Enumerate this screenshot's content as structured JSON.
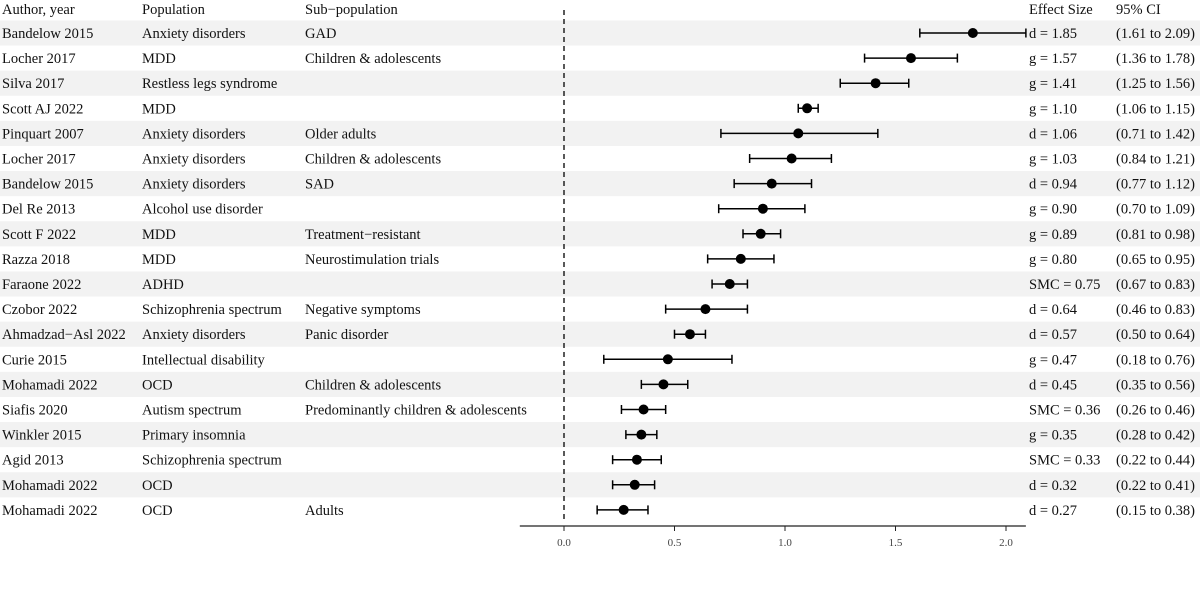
{
  "chart_data": {
    "type": "forest",
    "columns": {
      "author": "Author, year",
      "population": "Population",
      "subpopulation": "Sub−population",
      "effect": "Effect Size",
      "ci": "95% CI"
    },
    "x_ticks": [
      "0.0",
      "0.5",
      "1.0",
      "1.5",
      "2.0"
    ],
    "x_tick_values": [
      0,
      0.5,
      1.0,
      1.5,
      2.0
    ],
    "xlim": [
      -0.2,
      2.09
    ],
    "reference_line": 0,
    "series_color": "#000000",
    "stripe_color": "#f2f2f2",
    "rows": [
      {
        "author": "Bandelow 2015",
        "population": "Anxiety disorders",
        "subpopulation": "GAD",
        "effect_label": "d = 1.85",
        "ci_label": "(1.61 to 2.09)",
        "est": 1.85,
        "lo": 1.61,
        "hi": 2.09
      },
      {
        "author": "Locher 2017",
        "population": "MDD",
        "subpopulation": "Children & adolescents",
        "effect_label": "g = 1.57",
        "ci_label": "(1.36 to 1.78)",
        "est": 1.57,
        "lo": 1.36,
        "hi": 1.78
      },
      {
        "author": "Silva 2017",
        "population": "Restless legs syndrome",
        "subpopulation": "",
        "effect_label": "g = 1.41",
        "ci_label": "(1.25 to 1.56)",
        "est": 1.41,
        "lo": 1.25,
        "hi": 1.56
      },
      {
        "author": "Scott AJ 2022",
        "population": "MDD",
        "subpopulation": "",
        "effect_label": "g = 1.10",
        "ci_label": "(1.06 to 1.15)",
        "est": 1.1,
        "lo": 1.06,
        "hi": 1.15
      },
      {
        "author": "Pinquart 2007",
        "population": "Anxiety disorders",
        "subpopulation": "Older adults",
        "effect_label": "d = 1.06",
        "ci_label": "(0.71 to 1.42)",
        "est": 1.06,
        "lo": 0.71,
        "hi": 1.42
      },
      {
        "author": "Locher 2017",
        "population": "Anxiety disorders",
        "subpopulation": "Children & adolescents",
        "effect_label": "g = 1.03",
        "ci_label": "(0.84 to 1.21)",
        "est": 1.03,
        "lo": 0.84,
        "hi": 1.21
      },
      {
        "author": "Bandelow 2015",
        "population": "Anxiety disorders",
        "subpopulation": "SAD",
        "effect_label": "d = 0.94",
        "ci_label": "(0.77 to 1.12)",
        "est": 0.94,
        "lo": 0.77,
        "hi": 1.12
      },
      {
        "author": "Del Re 2013",
        "population": "Alcohol use disorder",
        "subpopulation": "",
        "effect_label": "g = 0.90",
        "ci_label": "(0.70 to 1.09)",
        "est": 0.9,
        "lo": 0.7,
        "hi": 1.09
      },
      {
        "author": "Scott F 2022",
        "population": "MDD",
        "subpopulation": "Treatment−resistant",
        "effect_label": "g = 0.89",
        "ci_label": "(0.81 to 0.98)",
        "est": 0.89,
        "lo": 0.81,
        "hi": 0.98
      },
      {
        "author": "Razza 2018",
        "population": "MDD",
        "subpopulation": "Neurostimulation trials",
        "effect_label": "g = 0.80",
        "ci_label": "(0.65 to 0.95)",
        "est": 0.8,
        "lo": 0.65,
        "hi": 0.95
      },
      {
        "author": "Faraone 2022",
        "population": "ADHD",
        "subpopulation": "",
        "effect_label": "SMC = 0.75",
        "ci_label": "(0.67 to 0.83)",
        "est": 0.75,
        "lo": 0.67,
        "hi": 0.83
      },
      {
        "author": "Czobor 2022",
        "population": "Schizophrenia spectrum",
        "subpopulation": "Negative symptoms",
        "effect_label": "d = 0.64",
        "ci_label": "(0.46 to 0.83)",
        "est": 0.64,
        "lo": 0.46,
        "hi": 0.83
      },
      {
        "author": "Ahmadzad−Asl 2022",
        "population": "Anxiety disorders",
        "subpopulation": "Panic disorder",
        "effect_label": "d = 0.57",
        "ci_label": "(0.50 to 0.64)",
        "est": 0.57,
        "lo": 0.5,
        "hi": 0.64
      },
      {
        "author": "Curie 2015",
        "population": "Intellectual disability",
        "subpopulation": "",
        "effect_label": "g = 0.47",
        "ci_label": "(0.18 to 0.76)",
        "est": 0.47,
        "lo": 0.18,
        "hi": 0.76
      },
      {
        "author": "Mohamadi 2022",
        "population": "OCD",
        "subpopulation": "Children & adolescents",
        "effect_label": "d = 0.45",
        "ci_label": "(0.35 to 0.56)",
        "est": 0.45,
        "lo": 0.35,
        "hi": 0.56
      },
      {
        "author": "Siafis 2020",
        "population": "Autism spectrum",
        "subpopulation": "Predominantly children & adolescents",
        "effect_label": "SMC = 0.36",
        "ci_label": "(0.26 to 0.46)",
        "est": 0.36,
        "lo": 0.26,
        "hi": 0.46
      },
      {
        "author": "Winkler 2015",
        "population": "Primary insomnia",
        "subpopulation": "",
        "effect_label": "g = 0.35",
        "ci_label": "(0.28 to 0.42)",
        "est": 0.35,
        "lo": 0.28,
        "hi": 0.42
      },
      {
        "author": "Agid 2013",
        "population": "Schizophrenia spectrum",
        "subpopulation": "",
        "effect_label": "SMC = 0.33",
        "ci_label": "(0.22 to 0.44)",
        "est": 0.33,
        "lo": 0.22,
        "hi": 0.44
      },
      {
        "author": "Mohamadi 2022",
        "population": "OCD",
        "subpopulation": "",
        "effect_label": "d = 0.32",
        "ci_label": "(0.22 to 0.41)",
        "est": 0.32,
        "lo": 0.22,
        "hi": 0.41
      },
      {
        "author": "Mohamadi 2022",
        "population": "OCD",
        "subpopulation": "Adults",
        "effect_label": "d = 0.27",
        "ci_label": "(0.15 to 0.38)",
        "est": 0.27,
        "lo": 0.15,
        "hi": 0.38
      }
    ]
  }
}
